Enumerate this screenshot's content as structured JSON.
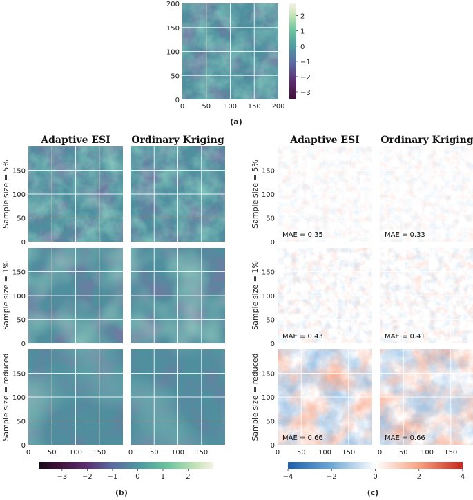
{
  "chart_data": {
    "type": "heatmap",
    "panels": [
      {
        "id": "a",
        "label": "(a)",
        "title": "",
        "x_ticks": [
          "0",
          "50",
          "100",
          "150",
          "200"
        ],
        "y_ticks": [
          "0",
          "50",
          "100",
          "150",
          "200"
        ],
        "xlim": [
          0,
          200
        ],
        "ylim": [
          0,
          200
        ],
        "colormap": "viridis-like (purple-blue-green-cream)",
        "colorbar": {
          "ticks": [
            "2",
            "1",
            "0",
            "−1",
            "−2",
            "−3"
          ],
          "range": [
            -3.5,
            2.8
          ]
        }
      },
      {
        "id": "b",
        "label": "(b)",
        "columns": [
          "Adaptive ESI",
          "Ordinary Kriging"
        ],
        "rows": [
          "Sample size = 5%",
          "Sample size = 1%",
          "Sample size = reduced"
        ],
        "x_ticks": [
          "0",
          "50",
          "100",
          "150"
        ],
        "y_ticks": [
          "0",
          "50",
          "100",
          "150"
        ],
        "colorbar": {
          "ticks": [
            "−3",
            "−2",
            "−1",
            "0",
            "1",
            "2"
          ],
          "range": [
            -3.9,
            3.0
          ]
        }
      },
      {
        "id": "c",
        "label": "(c)",
        "columns": [
          "Adaptive ESI",
          "Ordinary Kriging"
        ],
        "rows": [
          "Sample size = 5%",
          "Sample size = 1%",
          "Sample size = reduced"
        ],
        "x_ticks": [
          "0",
          "50",
          "100",
          "150"
        ],
        "y_ticks": [
          "0",
          "50",
          "100",
          "150"
        ],
        "mae": [
          [
            "MAE = 0.35",
            "MAE = 0.33"
          ],
          [
            "MAE = 0.43",
            "MAE = 0.41"
          ],
          [
            "MAE = 0.66",
            "MAE = 0.66"
          ]
        ],
        "mae_values": [
          [
            0.35,
            0.33
          ],
          [
            0.43,
            0.41
          ],
          [
            0.66,
            0.66
          ]
        ],
        "colormap": "diverging blue-white-red",
        "colorbar": {
          "ticks": [
            "−4",
            "−2",
            "0",
            "2",
            "4"
          ],
          "range": [
            -4,
            4
          ]
        }
      }
    ]
  },
  "colors": {
    "viridis": [
      "#3d0f35",
      "#5a2a6b",
      "#5b6aa2",
      "#4f9aa0",
      "#6dc49d",
      "#c5e4b7",
      "#f7f1e6"
    ],
    "diverging": [
      "#2166ac",
      "#67a9cf",
      "#d1e5f0",
      "#ffffff",
      "#fddbc7",
      "#ef8a62",
      "#b2182b"
    ]
  }
}
